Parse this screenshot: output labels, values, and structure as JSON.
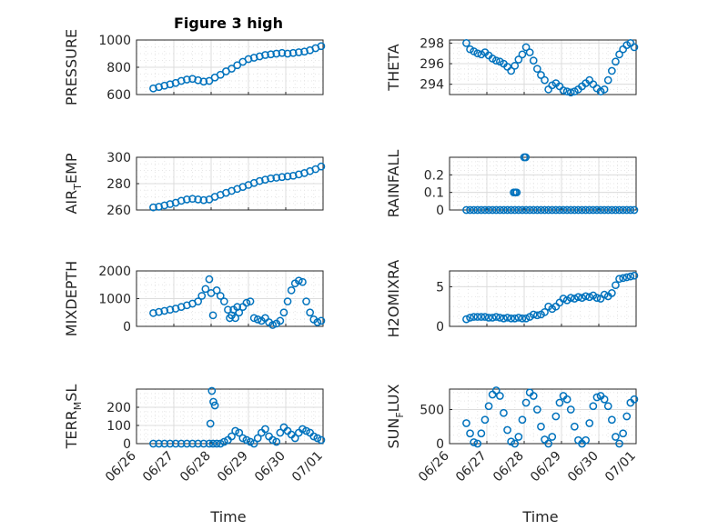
{
  "figure": {
    "title": "Figure 3 high",
    "marker_color": "#0072BD",
    "x_tick_labels": [
      "06/26",
      "06/27",
      "06/28",
      "06/29",
      "06/30",
      "07/01"
    ],
    "x_axis_label": "Time"
  },
  "chart_data": [
    {
      "type": "scatter",
      "ylabel": "PRESSURE",
      "ylim": [
        600,
        1000
      ],
      "yticks": [
        600,
        800,
        1000
      ],
      "xlim": [
        "06/26",
        "07/01"
      ],
      "x_unit": "days since 06/26",
      "x": [
        0.45,
        0.6,
        0.75,
        0.9,
        1.05,
        1.2,
        1.35,
        1.5,
        1.65,
        1.8,
        1.95,
        2.1,
        2.25,
        2.4,
        2.55,
        2.7,
        2.85,
        3.0,
        3.15,
        3.3,
        3.45,
        3.6,
        3.75,
        3.9,
        4.05,
        4.2,
        4.35,
        4.5,
        4.65,
        4.8,
        4.95
      ],
      "y": [
        645,
        655,
        665,
        675,
        685,
        700,
        710,
        715,
        705,
        695,
        700,
        725,
        745,
        770,
        790,
        815,
        840,
        860,
        870,
        880,
        890,
        895,
        900,
        905,
        900,
        905,
        910,
        915,
        925,
        940,
        955
      ]
    },
    {
      "type": "scatter",
      "ylabel": "THETA",
      "ylim": [
        293,
        298.3
      ],
      "yticks": [
        294,
        296,
        298
      ],
      "xlim": [
        "06/26",
        "07/01"
      ],
      "x": [
        0.45,
        0.55,
        0.65,
        0.75,
        0.85,
        0.95,
        1.05,
        1.15,
        1.25,
        1.35,
        1.45,
        1.55,
        1.65,
        1.75,
        1.85,
        1.95,
        2.05,
        2.15,
        2.25,
        2.35,
        2.45,
        2.55,
        2.65,
        2.75,
        2.85,
        2.95,
        3.05,
        3.15,
        3.25,
        3.35,
        3.45,
        3.55,
        3.65,
        3.75,
        3.85,
        3.95,
        4.05,
        4.15,
        4.25,
        4.35,
        4.45,
        4.55,
        4.65,
        4.75,
        4.85,
        4.95
      ],
      "y": [
        298.0,
        297.4,
        297.2,
        297.0,
        296.9,
        297.1,
        296.8,
        296.5,
        296.3,
        296.2,
        296.0,
        295.7,
        295.3,
        295.8,
        296.4,
        296.9,
        297.6,
        297.1,
        296.3,
        295.5,
        294.9,
        294.4,
        293.5,
        293.9,
        294.1,
        293.8,
        293.4,
        293.3,
        293.2,
        293.3,
        293.5,
        293.8,
        294.1,
        294.4,
        294.0,
        293.6,
        293.3,
        293.5,
        294.4,
        295.3,
        296.2,
        296.9,
        297.4,
        297.8,
        298.0,
        297.6
      ]
    },
    {
      "type": "scatter",
      "ylabel": "AIR_TEMP",
      "ylim": [
        260,
        300
      ],
      "yticks": [
        260,
        280,
        300
      ],
      "xlim": [
        "06/26",
        "07/01"
      ],
      "x": [
        0.45,
        0.6,
        0.75,
        0.9,
        1.05,
        1.2,
        1.35,
        1.5,
        1.65,
        1.8,
        1.95,
        2.1,
        2.25,
        2.4,
        2.55,
        2.7,
        2.85,
        3.0,
        3.15,
        3.3,
        3.45,
        3.6,
        3.75,
        3.9,
        4.05,
        4.2,
        4.35,
        4.5,
        4.65,
        4.8,
        4.95
      ],
      "y": [
        262.0,
        262.5,
        263.5,
        264.5,
        265.5,
        267.0,
        268.0,
        268.5,
        268.0,
        267.5,
        268.0,
        270.0,
        271.5,
        273.0,
        274.5,
        276.0,
        277.5,
        279.0,
        280.5,
        282.0,
        283.0,
        284.0,
        284.5,
        285.0,
        285.5,
        286.0,
        287.0,
        288.0,
        289.5,
        291.0,
        293.0
      ]
    },
    {
      "type": "scatter",
      "ylabel": "RAINFALL",
      "ylim": [
        0,
        0.3
      ],
      "yticks": [
        0,
        0.1,
        0.2
      ],
      "xlim": [
        "06/26",
        "07/01"
      ],
      "x": [
        0.45,
        0.55,
        0.65,
        0.75,
        0.85,
        0.95,
        1.05,
        1.15,
        1.25,
        1.35,
        1.45,
        1.55,
        1.65,
        1.75,
        1.85,
        1.95,
        2.05,
        2.15,
        2.25,
        2.35,
        2.45,
        2.55,
        2.65,
        2.75,
        2.85,
        2.95,
        3.05,
        3.15,
        3.25,
        3.35,
        3.45,
        3.55,
        3.65,
        3.75,
        3.85,
        3.95,
        4.05,
        4.15,
        4.25,
        4.35,
        4.45,
        4.55,
        4.65,
        4.75,
        4.85,
        4.95,
        1.72,
        1.76,
        1.8,
        2.0,
        2.04
      ],
      "y": [
        0,
        0,
        0,
        0,
        0,
        0,
        0,
        0,
        0,
        0,
        0,
        0,
        0,
        0,
        0,
        0,
        0,
        0,
        0,
        0,
        0,
        0,
        0,
        0,
        0,
        0,
        0,
        0,
        0,
        0,
        0,
        0,
        0,
        0,
        0,
        0,
        0,
        0,
        0,
        0,
        0,
        0,
        0,
        0,
        0,
        0,
        0.1,
        0.1,
        0.1,
        0.3,
        0.3
      ]
    },
    {
      "type": "scatter",
      "ylabel": "MIXDEPTH",
      "ylim": [
        0,
        2000
      ],
      "yticks": [
        0,
        1000,
        2000
      ],
      "xlim": [
        "06/26",
        "07/01"
      ],
      "x": [
        0.45,
        0.6,
        0.75,
        0.9,
        1.05,
        1.2,
        1.35,
        1.5,
        1.65,
        1.75,
        1.85,
        1.95,
        2.0,
        2.05,
        2.15,
        2.25,
        2.35,
        2.45,
        2.55,
        2.65,
        2.75,
        2.85,
        2.95,
        3.05,
        3.15,
        3.25,
        3.35,
        3.45,
        3.55,
        3.65,
        3.75,
        3.85,
        3.95,
        4.05,
        4.15,
        4.25,
        4.35,
        4.45,
        4.55,
        4.65,
        4.75,
        4.85,
        4.95,
        2.5,
        2.6,
        2.7
      ],
      "y": [
        480,
        520,
        560,
        600,
        640,
        700,
        760,
        820,
        900,
        1100,
        1350,
        1700,
        1200,
        400,
        1300,
        1100,
        900,
        600,
        400,
        300,
        500,
        700,
        850,
        900,
        300,
        250,
        200,
        300,
        150,
        50,
        100,
        200,
        500,
        900,
        1300,
        1550,
        1650,
        1600,
        900,
        500,
        250,
        150,
        200,
        300,
        600,
        700
      ]
    },
    {
      "type": "scatter",
      "ylabel": "H2OMIXRA",
      "ylim": [
        0,
        7
      ],
      "yticks": [
        0,
        5
      ],
      "xlim": [
        "06/26",
        "07/01"
      ],
      "x": [
        0.45,
        0.55,
        0.65,
        0.75,
        0.85,
        0.95,
        1.05,
        1.15,
        1.25,
        1.35,
        1.45,
        1.55,
        1.65,
        1.75,
        1.85,
        1.95,
        2.05,
        2.15,
        2.25,
        2.35,
        2.45,
        2.55,
        2.65,
        2.75,
        2.85,
        2.95,
        3.05,
        3.15,
        3.25,
        3.35,
        3.45,
        3.55,
        3.65,
        3.75,
        3.85,
        3.95,
        4.05,
        4.15,
        4.25,
        4.35,
        4.45,
        4.55,
        4.65,
        4.75,
        4.85,
        4.95
      ],
      "y": [
        0.9,
        1.1,
        1.2,
        1.2,
        1.2,
        1.2,
        1.1,
        1.1,
        1.2,
        1.1,
        1.0,
        1.1,
        1.0,
        1.0,
        1.1,
        1.0,
        1.0,
        1.2,
        1.5,
        1.4,
        1.5,
        1.8,
        2.5,
        2.2,
        2.5,
        3.0,
        3.5,
        3.3,
        3.6,
        3.5,
        3.7,
        3.6,
        3.8,
        3.7,
        3.9,
        3.6,
        3.5,
        4.0,
        3.8,
        4.2,
        5.2,
        6.0,
        6.1,
        6.2,
        6.3,
        6.4
      ]
    },
    {
      "type": "scatter",
      "ylabel": "TERR_MSL",
      "ylim": [
        0,
        300
      ],
      "yticks": [
        0,
        100,
        200
      ],
      "xlim": [
        "06/26",
        "07/01"
      ],
      "x": [
        0.45,
        0.6,
        0.75,
        0.9,
        1.05,
        1.2,
        1.35,
        1.5,
        1.65,
        1.8,
        1.95,
        2.05,
        2.15,
        2.25,
        2.35,
        2.45,
        2.55,
        2.65,
        2.75,
        2.85,
        2.95,
        3.05,
        3.15,
        3.25,
        3.35,
        3.45,
        3.55,
        3.65,
        3.75,
        3.85,
        3.95,
        4.05,
        4.15,
        4.25,
        4.35,
        4.45,
        4.55,
        4.65,
        4.75,
        4.85,
        4.95,
        1.98,
        2.02,
        2.06,
        2.1
      ],
      "y": [
        0,
        0,
        0,
        0,
        0,
        0,
        0,
        0,
        0,
        0,
        0,
        0,
        0,
        0,
        10,
        20,
        40,
        70,
        60,
        30,
        20,
        10,
        0,
        30,
        60,
        80,
        40,
        20,
        10,
        60,
        90,
        70,
        50,
        30,
        60,
        80,
        70,
        60,
        40,
        30,
        20,
        110,
        290,
        230,
        210
      ]
    },
    {
      "type": "scatter",
      "ylabel": "SUN_FLUX",
      "ylim": [
        0,
        800
      ],
      "yticks": [
        0,
        500
      ],
      "xlim": [
        "06/26",
        "07/01"
      ],
      "x": [
        0.45,
        0.55,
        0.65,
        0.75,
        0.85,
        0.95,
        1.05,
        1.15,
        1.25,
        1.35,
        1.45,
        1.55,
        1.65,
        1.75,
        1.85,
        1.95,
        2.05,
        2.15,
        2.25,
        2.35,
        2.45,
        2.55,
        2.65,
        2.75,
        2.85,
        2.95,
        3.05,
        3.15,
        3.25,
        3.35,
        3.45,
        3.55,
        3.65,
        3.75,
        3.85,
        3.95,
        4.05,
        4.15,
        4.25,
        4.35,
        4.45,
        4.55,
        4.65,
        4.75,
        4.85,
        4.95
      ],
      "y": [
        300,
        150,
        20,
        0,
        150,
        350,
        550,
        720,
        780,
        700,
        450,
        200,
        30,
        0,
        100,
        350,
        600,
        750,
        700,
        500,
        250,
        60,
        0,
        100,
        400,
        600,
        700,
        650,
        500,
        250,
        50,
        0,
        50,
        300,
        550,
        680,
        700,
        650,
        550,
        350,
        100,
        0,
        150,
        400,
        600,
        650
      ]
    }
  ]
}
